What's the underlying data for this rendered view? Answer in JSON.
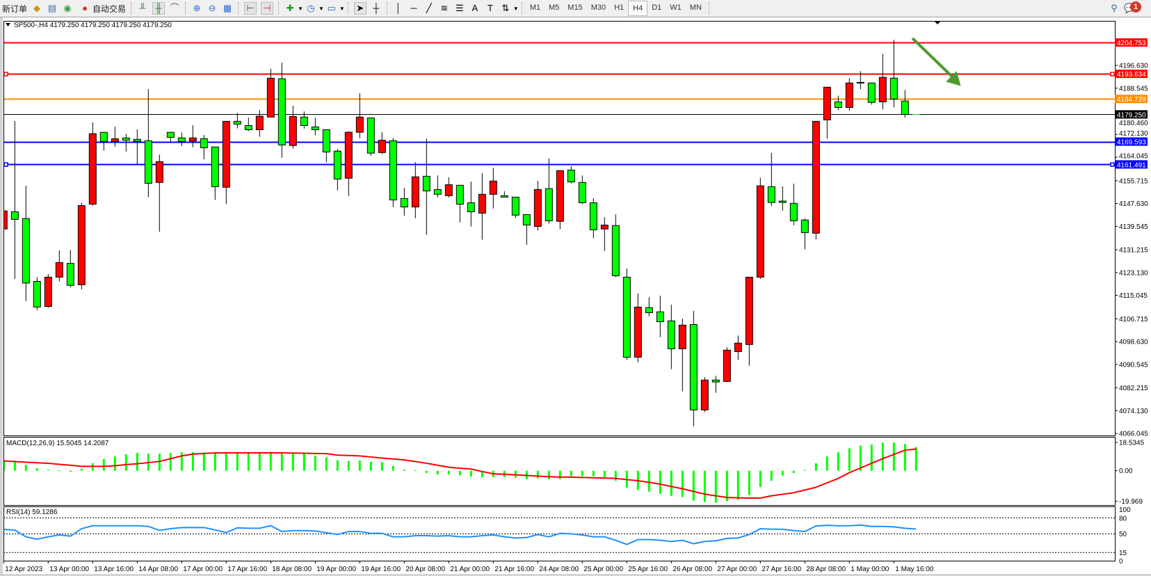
{
  "toolbar": {
    "new_order": "新订单",
    "auto_trading": "自动交易",
    "timeframes": [
      "M1",
      "M5",
      "M15",
      "M30",
      "H1",
      "H4",
      "D1",
      "W1",
      "MN"
    ],
    "active_timeframe": "H4",
    "notification_count": "1",
    "icons": [
      "market-watch-icon",
      "navigator-icon",
      "signals-icon",
      "auto-trading-icon",
      "bar-chart-icon",
      "candle-chart-icon",
      "line-chart-icon",
      "zoom-in-icon",
      "zoom-out-icon",
      "tile-windows-icon",
      "auto-scroll-icon",
      "chart-shift-icon",
      "indicators-icon",
      "periods-icon",
      "templates-icon",
      "cursor-icon",
      "crosshair-icon",
      "vertical-line-icon",
      "horizontal-line-icon",
      "trendline-icon",
      "fibonacci-icon",
      "fibo-fan-icon",
      "text-icon",
      "text-label-icon",
      "arrows-icon",
      "search-icon",
      "chat-icon"
    ]
  },
  "chart": {
    "title": "SP500-,H4  4179.250 4179.250 4179.250 4179.250",
    "macd_label": "MACD(12,26,9) 15.5045 14.2087",
    "rsi_label": "RSI(14) 59.1286"
  },
  "chart_data": {
    "type": "candlestick",
    "symbol": "SP500-",
    "timeframe": "H4",
    "bull_color": "#ff0000",
    "bear_color": "#00ff00",
    "ylim": [
      4066.045,
      4204.753
    ],
    "price_ticks": [
      "4196.630",
      "4188.545",
      "4180.460",
      "4172.130",
      "4164.045",
      "4155.715",
      "4147.630",
      "4139.545",
      "4131.215",
      "4123.130",
      "4115.045",
      "4106.715",
      "4098.630",
      "4090.545",
      "4082.215",
      "4074.130",
      "4066.045"
    ],
    "time_labels": [
      {
        "bar": 0,
        "text": "12 Apr 2023"
      },
      {
        "bar": 4,
        "text": "13 Apr 00:00"
      },
      {
        "bar": 8,
        "text": "13 Apr 16:00"
      },
      {
        "bar": 12,
        "text": "14 Apr 08:00"
      },
      {
        "bar": 16,
        "text": "17 Apr 00:00"
      },
      {
        "bar": 20,
        "text": "17 Apr 16:00"
      },
      {
        "bar": 24,
        "text": "18 Apr 08:00"
      },
      {
        "bar": 28,
        "text": "19 Apr 00:00"
      },
      {
        "bar": 32,
        "text": "19 Apr 16:00"
      },
      {
        "bar": 36,
        "text": "20 Apr 08:00"
      },
      {
        "bar": 40,
        "text": "21 Apr 00:00"
      },
      {
        "bar": 44,
        "text": "21 Apr 16:00"
      },
      {
        "bar": 48,
        "text": "24 Apr 08:00"
      },
      {
        "bar": 52,
        "text": "25 Apr 00:00"
      },
      {
        "bar": 56,
        "text": "25 Apr 16:00"
      },
      {
        "bar": 60,
        "text": "26 Apr 08:00"
      },
      {
        "bar": 64,
        "text": "27 Apr 00:00"
      },
      {
        "bar": 68,
        "text": "27 Apr 16:00"
      },
      {
        "bar": 72,
        "text": "28 Apr 08:00"
      },
      {
        "bar": 76,
        "text": "1 May 00:00"
      },
      {
        "bar": 80,
        "text": "1 May 16:00"
      }
    ],
    "hlines": [
      {
        "price": 4204.753,
        "label": "4204.753",
        "color": "#ff0000"
      },
      {
        "price": 4193.634,
        "label": "4193.634",
        "color": "#ff0000",
        "marker": true
      },
      {
        "price": 4184.728,
        "label": "4184.728",
        "color": "#ff8c00"
      },
      {
        "price": 4179.25,
        "label": "4179.250",
        "color": "#000000",
        "thin": true
      },
      {
        "price": 4169.593,
        "label": "4169.593",
        "color": "#0000ff"
      },
      {
        "price": 4161.491,
        "label": "4161.491",
        "color": "#0000ff",
        "marker": true
      }
    ],
    "arrow": {
      "color": "#4e9a2f",
      "direction": "down-right"
    },
    "ohlc": [
      [
        4138.6,
        4145.9,
        4138.0,
        4145.0
      ],
      [
        4144.7,
        4176.9,
        4120.9,
        4142.0
      ],
      [
        4142.3,
        4153.9,
        4113.0,
        4119.4
      ],
      [
        4120.0,
        4121.5,
        4109.8,
        4110.9
      ],
      [
        4111.1,
        4122.6,
        4110.6,
        4121.5
      ],
      [
        4121.5,
        4131.0,
        4120.0,
        4126.7
      ],
      [
        4126.4,
        4131.2,
        4117.8,
        4118.6
      ],
      [
        4118.8,
        4147.9,
        4117.2,
        4146.9
      ],
      [
        4147.4,
        4176.4,
        4146.9,
        4172.4
      ],
      [
        4172.9,
        4172.9,
        4166.4,
        4169.6
      ],
      [
        4169.6,
        4174.9,
        4167.8,
        4170.6
      ],
      [
        4170.9,
        4172.4,
        4166.1,
        4170.1
      ],
      [
        4170.4,
        4173.9,
        4161.6,
        4169.7
      ],
      [
        4169.9,
        4188.2,
        4149.9,
        4154.8
      ],
      [
        4155.1,
        4165.0,
        4137.6,
        4162.5
      ],
      [
        4172.9,
        4172.9,
        4169.6,
        4171.1
      ],
      [
        4170.9,
        4172.9,
        4168.0,
        4169.6
      ],
      [
        4169.8,
        4175.4,
        4167.6,
        4170.9
      ],
      [
        4170.6,
        4171.9,
        4163.3,
        4167.4
      ],
      [
        4167.7,
        4167.7,
        4148.9,
        4153.6
      ],
      [
        4153.4,
        4176.8,
        4147.4,
        4176.8
      ],
      [
        4176.8,
        4179.8,
        4174.3,
        4175.8
      ],
      [
        4175.3,
        4178.1,
        4173.3,
        4173.8
      ],
      [
        4173.8,
        4180.8,
        4171.3,
        4178.6
      ],
      [
        4178.3,
        4195.4,
        4178.3,
        4192.1
      ],
      [
        4191.9,
        4197.6,
        4163.9,
        4168.4
      ],
      [
        4168.2,
        4182.3,
        4167.1,
        4178.5
      ],
      [
        4178.3,
        4180.3,
        4174.2,
        4175.3
      ],
      [
        4174.8,
        4178.1,
        4171.8,
        4173.8
      ],
      [
        4173.8,
        4173.8,
        4162.2,
        4165.9
      ],
      [
        4166.2,
        4167.0,
        4152.3,
        4156.3
      ],
      [
        4156.6,
        4173.3,
        4150.3,
        4172.9
      ],
      [
        4172.9,
        4186.8,
        4170.8,
        4178.3
      ],
      [
        4178.0,
        4178.0,
        4164.6,
        4165.5
      ],
      [
        4165.7,
        4172.9,
        4165.1,
        4170.1
      ],
      [
        4169.9,
        4170.9,
        4146.4,
        4148.9
      ],
      [
        4149.4,
        4153.2,
        4143.3,
        4146.4
      ],
      [
        4146.4,
        4162.3,
        4142.4,
        4157.1
      ],
      [
        4157.3,
        4170.7,
        4136.5,
        4152.1
      ],
      [
        4152.6,
        4157.6,
        4149.8,
        4150.9
      ],
      [
        4150.4,
        4156.9,
        4149.8,
        4154.3
      ],
      [
        4154.1,
        4154.3,
        4140.9,
        4147.4
      ],
      [
        4147.9,
        4155.4,
        4139.5,
        4144.7
      ],
      [
        4144.2,
        4158.4,
        4134.8,
        4150.9
      ],
      [
        4150.9,
        4160.3,
        4145.9,
        4155.6
      ],
      [
        4150.4,
        4152.0,
        4149.9,
        4149.9
      ],
      [
        4149.9,
        4149.9,
        4142.5,
        4143.5
      ],
      [
        4143.7,
        4143.7,
        4133.0,
        4140.0
      ],
      [
        4139.5,
        4155.7,
        4138.1,
        4152.6
      ],
      [
        4152.9,
        4163.6,
        4140.5,
        4141.5
      ],
      [
        4141.3,
        4159.5,
        4138.5,
        4159.3
      ],
      [
        4159.5,
        4160.8,
        4154.8,
        4155.3
      ],
      [
        4155.1,
        4157.6,
        4147.4,
        4147.9
      ],
      [
        4147.9,
        4149.5,
        4135.3,
        4138.3
      ],
      [
        4138.6,
        4142.8,
        4130.8,
        4140.0
      ],
      [
        4139.8,
        4143.8,
        4121.5,
        4122.0
      ],
      [
        4121.5,
        4124.6,
        4092.1,
        4093.1
      ],
      [
        4093.1,
        4115.7,
        4091.3,
        4110.9
      ],
      [
        4110.7,
        4114.4,
        4107.6,
        4108.9
      ],
      [
        4109.2,
        4114.9,
        4100.2,
        4105.7
      ],
      [
        4106.0,
        4111.7,
        4088.9,
        4096.1
      ],
      [
        4096.1,
        4106.8,
        4081.0,
        4104.5
      ],
      [
        4104.7,
        4109.5,
        4068.6,
        4074.4
      ],
      [
        4074.4,
        4086.0,
        4073.6,
        4085.0
      ],
      [
        4085.0,
        4086.5,
        4080.5,
        4084.3
      ],
      [
        4084.5,
        4096.6,
        4084.3,
        4095.6
      ],
      [
        4095.1,
        4100.8,
        4092.2,
        4098.1
      ],
      [
        4097.6,
        4121.5,
        4090.1,
        4121.5
      ],
      [
        4121.5,
        4156.8,
        4120.9,
        4153.9
      ],
      [
        4153.6,
        4165.6,
        4146.8,
        4148.0
      ],
      [
        4148.5,
        4153.7,
        4145.1,
        4148.0
      ],
      [
        4147.7,
        4154.7,
        4139.9,
        4141.5
      ],
      [
        4141.8,
        4142.3,
        4131.4,
        4137.3
      ],
      [
        4137.1,
        4176.8,
        4134.9,
        4176.8
      ],
      [
        4177.3,
        4188.9,
        4170.6,
        4188.9
      ],
      [
        4183.7,
        4185.9,
        4180.8,
        4181.7
      ],
      [
        4181.7,
        4192.1,
        4180.5,
        4190.4
      ],
      [
        4190.5,
        4194.6,
        4188.2,
        4190.6
      ],
      [
        4190.4,
        4190.4,
        4182.7,
        4183.5
      ],
      [
        4183.7,
        4200.7,
        4181.0,
        4192.4
      ],
      [
        4192.1,
        4205.7,
        4181.7,
        4184.7
      ],
      [
        4184.0,
        4187.9,
        4178.1,
        4179.25
      ],
      [
        4179.25,
        4179.25,
        4179.25,
        4179.25
      ]
    ],
    "macd": {
      "axis_labels": [
        "18.5345",
        "0.00",
        "-19.969"
      ],
      "histogram_color": "#00ff00",
      "signal_color": "#ff0000",
      "histogram": [
        6.4,
        5.6,
        3.8,
        1.7,
        0.6,
        0.3,
        -0.8,
        1.4,
        4.9,
        7.6,
        9.4,
        10.8,
        11.7,
        11.2,
        11.2,
        11.7,
        12.1,
        12.1,
        12.0,
        11.4,
        11.4,
        11.4,
        11.4,
        11.7,
        12.4,
        11.4,
        11.4,
        11.4,
        9.9,
        8.7,
        6.8,
        6.4,
        6.8,
        5.9,
        5.6,
        3.2,
        0.8,
        0.3,
        -1.5,
        -2.4,
        -2.4,
        -3.0,
        -3.8,
        -4.2,
        -4.2,
        -4.2,
        -4.6,
        -5.5,
        -5.0,
        -5.5,
        -5.5,
        -3.5,
        -3.5,
        -3.5,
        -4.2,
        -6.5,
        -11.1,
        -12.6,
        -13.7,
        -15.2,
        -16.4,
        -17.2,
        -19.6,
        -20.5,
        -20.9,
        -19.9,
        -19.0,
        -15.9,
        -10.6,
        -6.5,
        -3.2,
        -1.5,
        0.5,
        4.9,
        9.4,
        12.1,
        14.7,
        16.5,
        17.2,
        18.5,
        18.5,
        17.5,
        15.5
      ],
      "signal": [
        6.4,
        6.0,
        5.6,
        5.2,
        4.9,
        4.2,
        3.6,
        2.9,
        2.9,
        2.9,
        3.3,
        4.0,
        4.6,
        5.3,
        6.1,
        7.9,
        9.7,
        10.9,
        11.3,
        11.7,
        11.7,
        11.7,
        11.7,
        11.7,
        11.7,
        11.7,
        11.6,
        11.5,
        11.3,
        11.2,
        10.2,
        10.0,
        9.7,
        9.0,
        8.3,
        7.7,
        7.1,
        6.0,
        4.9,
        3.6,
        2.3,
        1.7,
        1.1,
        -0.5,
        -2.0,
        -2.3,
        -2.7,
        -3.1,
        -3.5,
        -3.9,
        -4.2,
        -4.2,
        -4.4,
        -4.6,
        -4.8,
        -5.0,
        -5.8,
        -6.5,
        -7.6,
        -8.8,
        -10.3,
        -11.8,
        -13.5,
        -15.3,
        -16.4,
        -17.5,
        -17.7,
        -17.9,
        -17.9,
        -16.4,
        -15.4,
        -14.4,
        -12.6,
        -10.8,
        -7.9,
        -5.0,
        -1.2,
        1.8,
        4.9,
        7.9,
        10.7,
        13.5,
        14.2
      ]
    },
    "rsi": {
      "axis_labels": [
        "100",
        "80",
        "50",
        "15",
        "0"
      ],
      "levels": [
        80,
        50,
        15
      ],
      "color": "#1e90ff",
      "values": [
        58.4,
        57.1,
        44.5,
        40.1,
        44.5,
        48.0,
        45.8,
        59.7,
        65.3,
        65.3,
        65.3,
        65.3,
        65.3,
        64.0,
        56.6,
        59.7,
        61.8,
        61.8,
        61.8,
        57.5,
        52.3,
        61.4,
        60.5,
        60.5,
        65.3,
        54.4,
        56.2,
        56.2,
        55.3,
        52.3,
        48.8,
        54.4,
        54.4,
        51.0,
        51.0,
        44.5,
        44.5,
        46.7,
        46.7,
        45.8,
        46.7,
        44.5,
        44.5,
        46.7,
        48.0,
        44.5,
        42.3,
        43.2,
        48.8,
        44.5,
        51.0,
        50.1,
        48.0,
        44.5,
        44.5,
        38.0,
        30.2,
        39.3,
        39.3,
        38.0,
        35.8,
        38.0,
        31.5,
        35.8,
        37.1,
        41.4,
        42.3,
        48.8,
        59.7,
        58.8,
        58.8,
        56.2,
        54.4,
        64.8,
        66.1,
        65.3,
        65.3,
        66.5,
        64.0,
        64.0,
        63.1,
        60.5,
        59.1
      ]
    }
  }
}
